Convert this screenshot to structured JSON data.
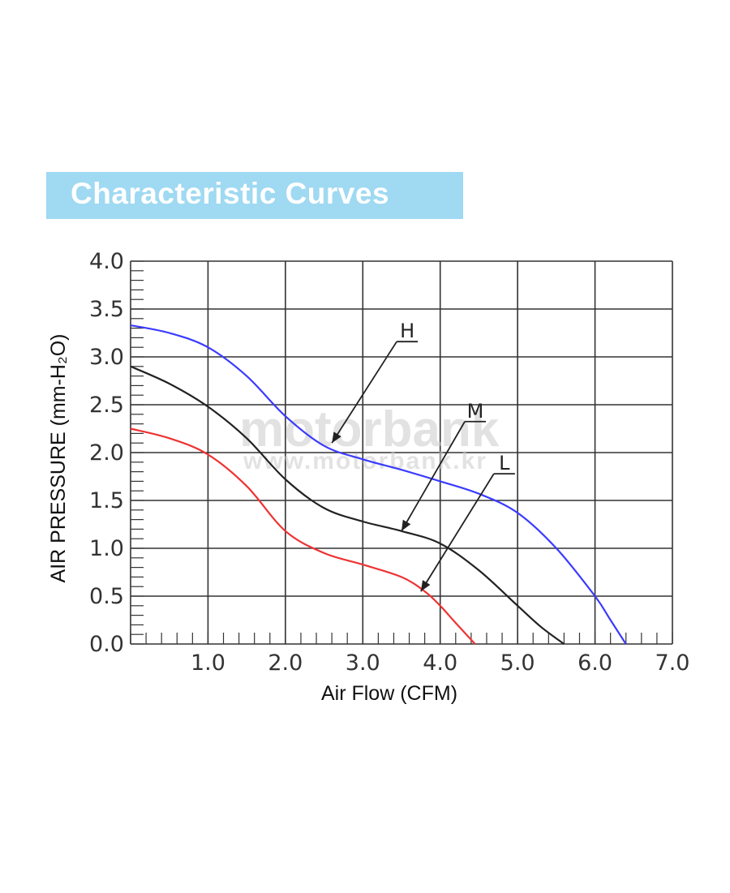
{
  "header": {
    "title": "Characteristic Curves"
  },
  "watermark": {
    "brand": "motorbank",
    "url": "www.motorbank.kr"
  },
  "chart_data": {
    "type": "line",
    "xlabel": "Air Flow (CFM)",
    "ylabel": "AIR PRESSURE (mm-H₂O)",
    "xlim": [
      0,
      7
    ],
    "ylim": [
      0,
      4
    ],
    "x_ticks": [
      "1.0",
      "2.0",
      "3.0",
      "4.0",
      "5.0",
      "6.0",
      "7.0"
    ],
    "y_ticks": [
      "0.0",
      "0.5",
      "1.0",
      "1.5",
      "2.0",
      "2.5",
      "3.0",
      "3.5",
      "4.0"
    ],
    "grid": true,
    "series": [
      {
        "name": "H",
        "color": "#3b3bff",
        "x": [
          0,
          0.5,
          1.0,
          1.5,
          2.0,
          2.5,
          3.0,
          3.5,
          4.0,
          4.5,
          5.0,
          5.5,
          6.0,
          6.2,
          6.4
        ],
        "y": [
          3.33,
          3.25,
          3.1,
          2.8,
          2.38,
          2.07,
          1.93,
          1.82,
          1.7,
          1.57,
          1.37,
          1.0,
          0.5,
          0.25,
          0.0
        ],
        "callout": {
          "label": "H",
          "point": [
            2.6,
            2.1
          ]
        }
      },
      {
        "name": "M",
        "color": "#222222",
        "x": [
          0,
          0.5,
          1.0,
          1.5,
          2.0,
          2.5,
          3.0,
          3.5,
          4.0,
          4.5,
          5.0,
          5.3,
          5.6
        ],
        "y": [
          2.9,
          2.72,
          2.48,
          2.15,
          1.72,
          1.42,
          1.28,
          1.18,
          1.05,
          0.77,
          0.4,
          0.18,
          0.0
        ],
        "callout": {
          "label": "M",
          "point": [
            3.5,
            1.18
          ]
        }
      },
      {
        "name": "L",
        "color": "#ee3333",
        "x": [
          0,
          0.5,
          1.0,
          1.5,
          2.0,
          2.5,
          3.0,
          3.5,
          3.8,
          4.0,
          4.2,
          4.45
        ],
        "y": [
          2.25,
          2.15,
          1.98,
          1.65,
          1.18,
          0.95,
          0.83,
          0.7,
          0.55,
          0.4,
          0.22,
          0.0
        ],
        "callout": {
          "label": "L",
          "point": [
            3.75,
            0.55
          ]
        }
      }
    ]
  }
}
